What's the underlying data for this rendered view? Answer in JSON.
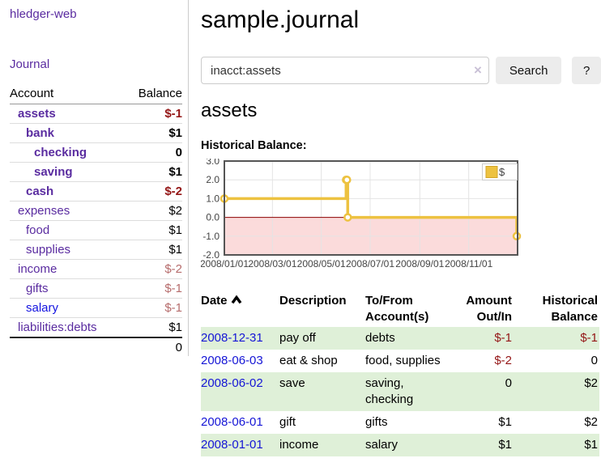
{
  "app": {
    "title": "hledger-web",
    "nav_journal": "Journal"
  },
  "sidebar": {
    "headers": {
      "account": "Account",
      "balance": "Balance"
    },
    "accounts": [
      {
        "name": "assets",
        "indent": 1,
        "bold": true,
        "balance": "$-1",
        "balance_style": "neg"
      },
      {
        "name": "bank",
        "indent": 2,
        "bold": true,
        "balance": "$1",
        "balance_style": "pos"
      },
      {
        "name": "checking",
        "indent": 3,
        "bold": true,
        "balance": "0",
        "balance_style": "pos"
      },
      {
        "name": "saving",
        "indent": 3,
        "bold": true,
        "balance": "$1",
        "balance_style": "pos"
      },
      {
        "name": "cash",
        "indent": 2,
        "bold": true,
        "balance": "$-2",
        "balance_style": "neg"
      },
      {
        "name": "expenses",
        "indent": 1,
        "bold": false,
        "balance": "$2",
        "balance_style": "pos"
      },
      {
        "name": "food",
        "indent": 2,
        "bold": false,
        "balance": "$1",
        "balance_style": "pos"
      },
      {
        "name": "supplies",
        "indent": 2,
        "bold": false,
        "balance": "$1",
        "balance_style": "pos"
      },
      {
        "name": "income",
        "indent": 1,
        "bold": false,
        "balance": "$-2",
        "balance_style": "negsoft"
      },
      {
        "name": "gifts",
        "indent": 2,
        "bold": false,
        "balance": "$-1",
        "balance_style": "negsoft"
      },
      {
        "name": "salary",
        "indent": 2,
        "bold": false,
        "balance": "$-1",
        "balance_style": "negsoft",
        "link_style": "blue"
      },
      {
        "name": "liabilities:debts",
        "indent": 1,
        "bold": false,
        "balance": "$1",
        "balance_style": "pos"
      }
    ],
    "total": "0"
  },
  "header": {
    "title": "sample.journal"
  },
  "search": {
    "value": "inacct:assets",
    "clear_icon": "×",
    "button_label": "Search",
    "help_label": "?"
  },
  "account_page": {
    "heading": "assets",
    "chart_title": "Historical Balance:"
  },
  "chart_data": {
    "type": "line",
    "title": "Historical Balance:",
    "step": true,
    "series": [
      {
        "name": "$",
        "color": "#edc240",
        "points": [
          [
            "2008-01-01",
            1
          ],
          [
            "2008-06-01",
            2
          ],
          [
            "2008-06-02",
            2
          ],
          [
            "2008-06-03",
            0
          ],
          [
            "2008-12-31",
            -1
          ]
        ]
      }
    ],
    "xlim": [
      "2008-01-01",
      "2009-01-01"
    ],
    "ylim": [
      -2,
      3
    ],
    "x_ticks": [
      "2008/01/01",
      "2008/03/01",
      "2008/05/01",
      "2008/07/01",
      "2008/09/01",
      "2008/11/01"
    ],
    "y_ticks": [
      3.0,
      2.0,
      1.0,
      0.0,
      -1.0,
      -2.0
    ],
    "grid": true,
    "negative_region_fill": "#fbdbdb",
    "zero_line_color": "#8b0000",
    "grid_color": "#e4e4e4",
    "border_color": "#555555",
    "tick_color": "#444444",
    "legend": {
      "label": "$",
      "position": "top-right"
    }
  },
  "register": {
    "headers": [
      {
        "label": "Date",
        "sorted": "asc"
      },
      {
        "label": "Description"
      },
      {
        "label": "To/From Account(s)"
      },
      {
        "label": "Amount Out/In",
        "align": "right"
      },
      {
        "label": "Historical Balance",
        "align": "right"
      }
    ],
    "rows": [
      {
        "date": "2008-12-31",
        "description": "pay off",
        "accounts": "debts",
        "amount": "$-1",
        "amount_style": "neg",
        "balance": "$-1",
        "balance_style": "neg"
      },
      {
        "date": "2008-06-03",
        "description": "eat & shop",
        "accounts": "food, supplies",
        "amount": "$-2",
        "amount_style": "neg",
        "balance": "0",
        "balance_style": "pos"
      },
      {
        "date": "2008-06-02",
        "description": "save",
        "accounts": "saving, checking",
        "amount": "0",
        "amount_style": "pos",
        "balance": "$2",
        "balance_style": "pos"
      },
      {
        "date": "2008-06-01",
        "description": "gift",
        "accounts": "gifts",
        "amount": "$1",
        "amount_style": "pos",
        "balance": "$2",
        "balance_style": "pos"
      },
      {
        "date": "2008-01-01",
        "description": "income",
        "accounts": "salary",
        "amount": "$1",
        "amount_style": "pos",
        "balance": "$1",
        "balance_style": "pos"
      }
    ]
  },
  "colors": {
    "link_purple": "#5a2ca0",
    "link_blue": "#1414e0",
    "date_link_blue": "#1515d6",
    "negative_strong": "#941616",
    "negative_soft": "#b66c6c",
    "row_stripe_green": "#dff0d8",
    "series_gold": "#edc240",
    "button_gray": "#ececec"
  }
}
